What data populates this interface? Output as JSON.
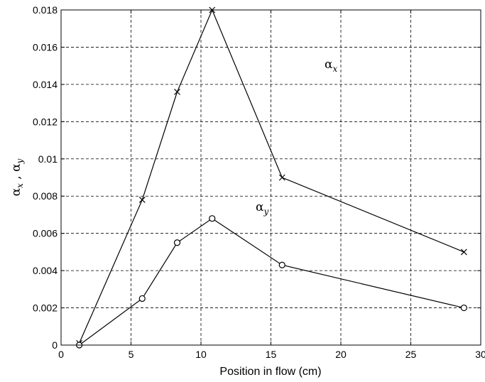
{
  "chart_data": {
    "type": "line",
    "title": "",
    "xlabel": "Position in flow (cm)",
    "ylabel": {
      "symbol1": "α",
      "sub1": "x",
      "sep": " , ",
      "symbol2": "α",
      "sub2": "y"
    },
    "xlim": [
      0,
      30
    ],
    "ylim": [
      0,
      0.018
    ],
    "xticks": [
      "0",
      "5",
      "10",
      "15",
      "20",
      "25",
      "30"
    ],
    "yticks": [
      "0",
      "0.002",
      "0.004",
      "0.006",
      "0.008",
      "0.01",
      "0.012",
      "0.014",
      "0.016",
      "0.018"
    ],
    "grid": true,
    "series": [
      {
        "name": "αx",
        "label_symbol": "α",
        "label_sub": "x",
        "marker": "x",
        "x": [
          1.3,
          5.8,
          8.3,
          10.8,
          15.8,
          28.8
        ],
        "y": [
          0.0001,
          0.0078,
          0.0136,
          0.018,
          0.009,
          0.005
        ]
      },
      {
        "name": "αy",
        "label_symbol": "α",
        "label_sub": "y",
        "marker": "o",
        "x": [
          1.3,
          5.8,
          8.3,
          10.8,
          15.8,
          28.8
        ],
        "y": [
          0.0,
          0.0025,
          0.0055,
          0.0068,
          0.0043,
          0.002
        ]
      }
    ],
    "colors": {
      "line": "#000000",
      "grid": "#000000",
      "background": "#ffffff"
    }
  }
}
